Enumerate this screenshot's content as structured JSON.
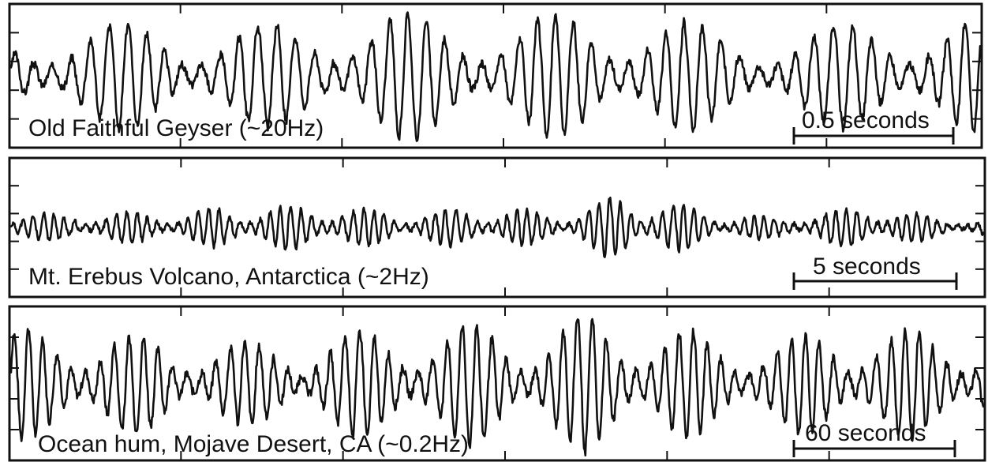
{
  "chart_data": [
    {
      "type": "line",
      "label": "Old Faithful Geyser (~20Hz)",
      "scale_bar_label": "0.5 seconds",
      "color": "#111111",
      "freq_cycles": 52,
      "seed": 3,
      "envelope": [
        0.55,
        0.75,
        0.8,
        0.7,
        0.75,
        0.9,
        0.95,
        0.9,
        0.85,
        1.0,
        0.9,
        0.7,
        0.6,
        0.8,
        0.9,
        0.85
      ]
    },
    {
      "type": "line",
      "label": "Mt. Erebus Volcano, Antarctica (~2Hz)",
      "scale_bar_label": "5 seconds",
      "color": "#111111",
      "freq_cycles": 95,
      "seed": 11,
      "envelope": [
        0.5,
        0.35,
        0.45,
        0.4,
        0.55,
        0.6,
        0.65,
        0.5,
        0.45,
        0.55,
        0.5,
        0.45,
        1.0,
        0.7,
        0.35,
        0.3,
        0.5,
        0.65,
        0.3,
        0.2
      ]
    },
    {
      "type": "line",
      "label": "Ocean hum, Mojave Desert, CA (~0.2Hz)",
      "scale_bar_label": "60 seconds",
      "color": "#111111",
      "freq_cycles": 68,
      "seed": 7,
      "envelope": [
        0.75,
        0.8,
        0.65,
        0.6,
        0.55,
        0.7,
        0.8,
        0.85,
        0.75,
        1.0,
        0.85,
        0.6,
        0.65,
        0.8,
        0.75,
        0.7
      ]
    }
  ]
}
